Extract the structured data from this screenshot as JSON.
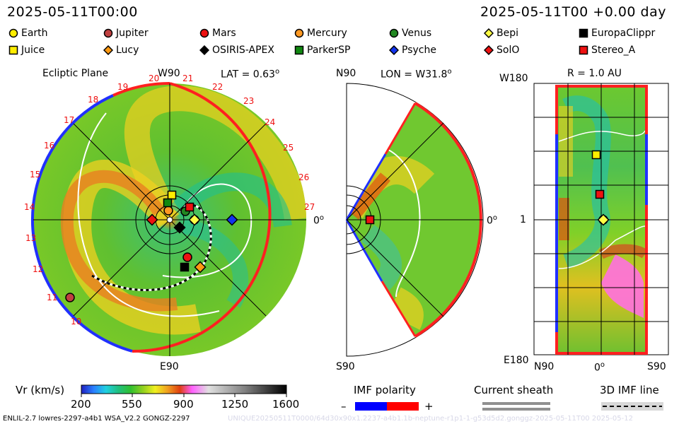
{
  "header": {
    "timestamp": "2025-05-11T00:00",
    "forecast": "2025-05-11T00 +0.00 day"
  },
  "legend": [
    {
      "name": "Earth",
      "shape": "circle",
      "color": "#ffee00"
    },
    {
      "name": "Jupiter",
      "shape": "circle",
      "color": "#c04040"
    },
    {
      "name": "Mars",
      "shape": "circle",
      "color": "#ee1111"
    },
    {
      "name": "Mercury",
      "shape": "circle",
      "color": "#ff9922"
    },
    {
      "name": "Venus",
      "shape": "circle",
      "color": "#228822"
    },
    {
      "name": "Bepi",
      "shape": "diamond",
      "color": "#ffff44"
    },
    {
      "name": "EuropaClippr",
      "shape": "square",
      "color": "#000000"
    },
    {
      "name": "Juice",
      "shape": "square",
      "color": "#ffee00"
    },
    {
      "name": "Lucy",
      "shape": "diamond",
      "color": "#ff9911"
    },
    {
      "name": "OSIRIS-APEX",
      "shape": "diamond",
      "color": "#000000"
    },
    {
      "name": "ParkerSP",
      "shape": "square",
      "color": "#118811"
    },
    {
      "name": "Psyche",
      "shape": "diamond",
      "color": "#1133ee"
    },
    {
      "name": "SolO",
      "shape": "diamond",
      "color": "#ee1111"
    },
    {
      "name": "Stereo_A",
      "shape": "square",
      "color": "#ee1111"
    }
  ],
  "ecliptic": {
    "title": "Ecliptic Plane",
    "top_label": "W90",
    "bottom_label": "E90",
    "right_label": "0",
    "lat_label": "LAT = 0.63",
    "rotation_labels": [
      "18",
      "19",
      "20",
      "21",
      "22",
      "23",
      "24",
      "25",
      "26",
      "27",
      "16",
      "17",
      "15",
      "14",
      "13",
      "12",
      "11",
      "10"
    ]
  },
  "meridional": {
    "lon_label": "LON = W31.8",
    "top_label": "N90",
    "bottom_label": "S90",
    "right_label": "0"
  },
  "latlon": {
    "r_label": "R = 1.0 AU",
    "top_label": "W180",
    "bottom_label": "E180",
    "left_label": "1",
    "x_left": "N90",
    "x_mid": "0",
    "x_right": "S90"
  },
  "colorbar": {
    "label": "Vr (km/s)",
    "ticks": [
      "200",
      "550",
      "900",
      "1250",
      "1600"
    ],
    "range": [
      200,
      1600
    ],
    "colors": [
      "#2020c0",
      "#2a7fff",
      "#20d0e0",
      "#20c080",
      "#30c030",
      "#90d020",
      "#f0f020",
      "#f0a020",
      "#e04010",
      "#ff60ff",
      "#c8c8c8",
      "#808080",
      "#000000"
    ]
  },
  "imf": {
    "label": "IMF polarity",
    "minus": "–",
    "plus": "+",
    "neg_color": "#0000ff",
    "pos_color": "#ff0000"
  },
  "sheath": {
    "label": "Current sheath"
  },
  "imf3d": {
    "label": "3D IMF line"
  },
  "footer": {
    "model": "ENLIL-2.7 lowres-2297-a4b1 WSA_V2.2 GONGZ-2297",
    "watermark": "UNIQUE20250511T0000/64d30x90x1.2237-a4b1.1b-neptune-r1p1-1-g53d5d2.gonggz-2025-05-11T00    2025-05-12"
  }
}
